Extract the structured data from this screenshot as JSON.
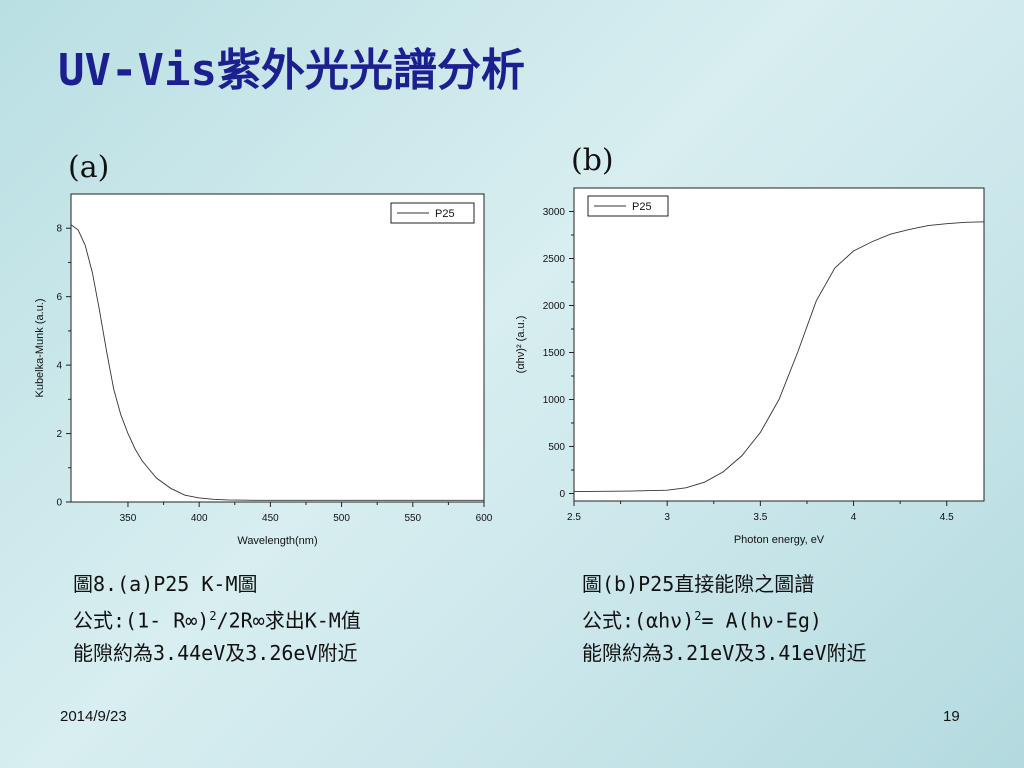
{
  "slide": {
    "title": "UV-Vis紫外光光譜分析",
    "date": "2014/9/23",
    "page_number": "19"
  },
  "panels": [
    {
      "label": "(a)"
    },
    {
      "label": "(b)"
    }
  ],
  "captions": {
    "left": {
      "line1": "圖8.(a)P25 K-M圖",
      "line2_prefix": "公式:(1- R∞)",
      "line2_sup": "2",
      "line2_suffix": "/2R∞求出K-M值",
      "line3": "能隙約為3.44eV及3.26eV附近"
    },
    "right": {
      "line1": "圖(b)P25直接能隙之圖譜",
      "line2_prefix": "公式:(αhν)",
      "line2_sup": "2",
      "line2_suffix": "= A(hν-Eg)",
      "line3": "能隙約為3.21eV及3.41eV附近"
    }
  },
  "chart_data": [
    {
      "type": "line",
      "xlabel": "Wavelength(nm)",
      "ylabel": "Kubelka-Munk (a.u.)",
      "xlim": [
        310,
        600
      ],
      "ylim": [
        0,
        9
      ],
      "xticks": [
        350,
        400,
        450,
        500,
        550,
        600
      ],
      "yticks": [
        0,
        2,
        4,
        6,
        8
      ],
      "legend_position": "top-right",
      "grid": false,
      "series": [
        {
          "name": "P25",
          "color": "#333333",
          "x": [
            310,
            315,
            320,
            325,
            330,
            335,
            340,
            345,
            350,
            355,
            360,
            370,
            380,
            390,
            400,
            410,
            420,
            440,
            460,
            500,
            550,
            600
          ],
          "y": [
            8.1,
            7.95,
            7.5,
            6.7,
            5.6,
            4.4,
            3.3,
            2.55,
            2.0,
            1.55,
            1.2,
            0.7,
            0.4,
            0.2,
            0.12,
            0.08,
            0.06,
            0.05,
            0.05,
            0.05,
            0.05,
            0.05
          ]
        }
      ]
    },
    {
      "type": "line",
      "xlabel": "Photon energy, eV",
      "ylabel": "(αhν)² (a.u.)",
      "xlim": [
        2.5,
        4.7
      ],
      "ylim": [
        -80,
        3250
      ],
      "xticks": [
        2.5,
        3.0,
        3.5,
        4.0,
        4.5
      ],
      "yticks": [
        0,
        500,
        1000,
        1500,
        2000,
        2500,
        3000
      ],
      "legend_position": "top-left",
      "grid": false,
      "series": [
        {
          "name": "P25",
          "color": "#333333",
          "x": [
            2.5,
            2.8,
            3.0,
            3.1,
            3.2,
            3.3,
            3.4,
            3.5,
            3.6,
            3.7,
            3.8,
            3.9,
            4.0,
            4.1,
            4.2,
            4.3,
            4.4,
            4.5,
            4.6,
            4.7
          ],
          "y": [
            20,
            25,
            35,
            60,
            120,
            230,
            400,
            650,
            1000,
            1500,
            2050,
            2400,
            2580,
            2680,
            2760,
            2810,
            2850,
            2870,
            2885,
            2890
          ]
        }
      ]
    }
  ]
}
